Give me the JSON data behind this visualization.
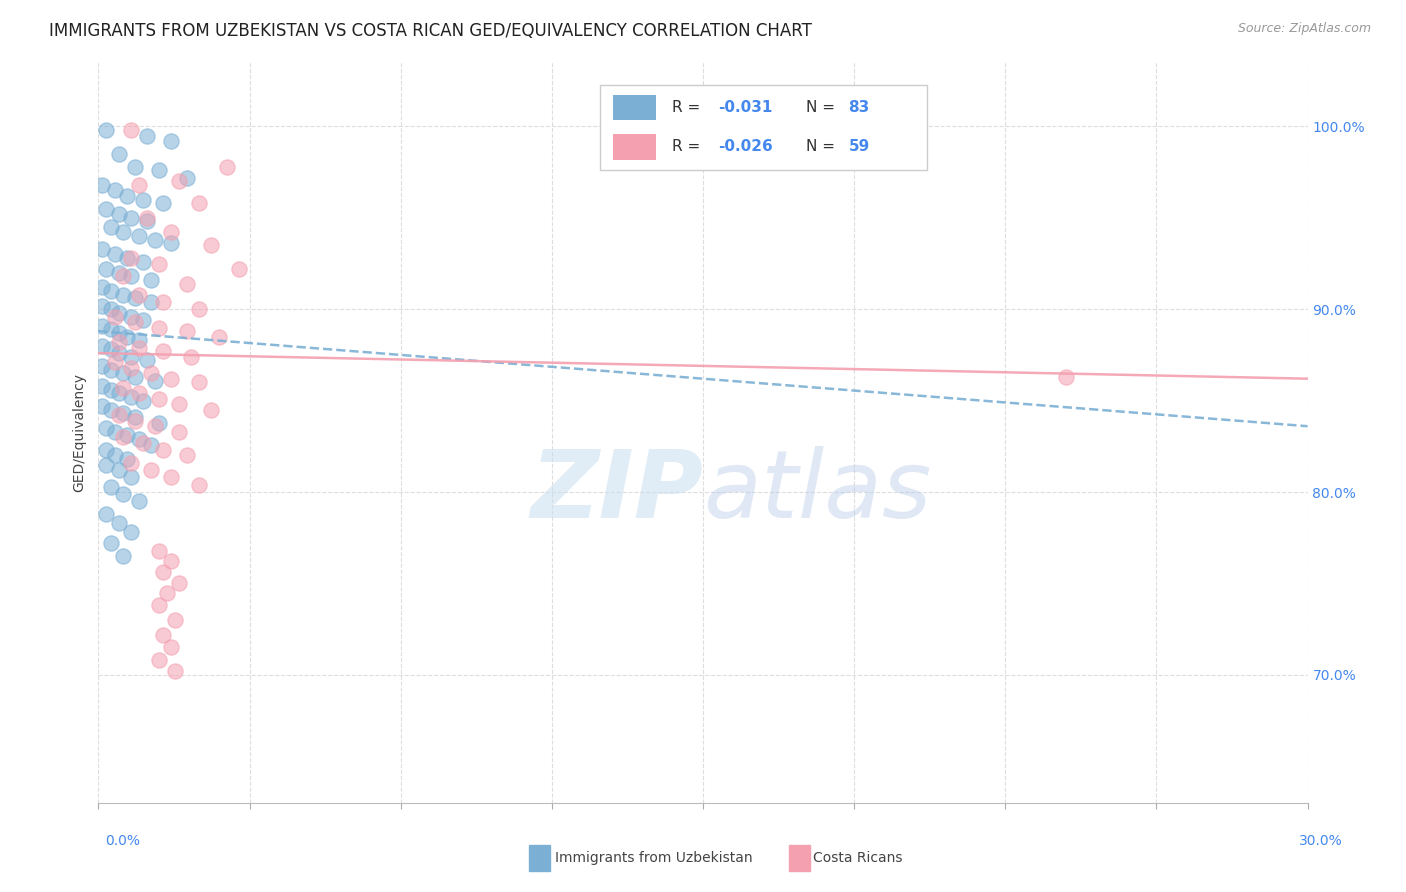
{
  "title": "IMMIGRANTS FROM UZBEKISTAN VS COSTA RICAN GED/EQUIVALENCY CORRELATION CHART",
  "source": "Source: ZipAtlas.com",
  "ylabel": "GED/Equivalency",
  "ytick_labels": [
    "100.0%",
    "90.0%",
    "80.0%",
    "70.0%"
  ],
  "ytick_values": [
    1.0,
    0.9,
    0.8,
    0.7
  ],
  "xlim": [
    0.0,
    0.3
  ],
  "ylim": [
    0.63,
    1.035
  ],
  "legend_label_blue": "Immigrants from Uzbekistan",
  "legend_label_pink": "Costa Ricans",
  "watermark_zip": "ZIP",
  "watermark_atlas": "atlas",
  "blue_color": "#7BAFD4",
  "pink_color": "#F4A0B0",
  "blue_scatter": [
    [
      0.002,
      0.998
    ],
    [
      0.012,
      0.995
    ],
    [
      0.018,
      0.992
    ],
    [
      0.005,
      0.985
    ],
    [
      0.009,
      0.978
    ],
    [
      0.015,
      0.976
    ],
    [
      0.022,
      0.972
    ],
    [
      0.001,
      0.968
    ],
    [
      0.004,
      0.965
    ],
    [
      0.007,
      0.962
    ],
    [
      0.011,
      0.96
    ],
    [
      0.016,
      0.958
    ],
    [
      0.002,
      0.955
    ],
    [
      0.005,
      0.952
    ],
    [
      0.008,
      0.95
    ],
    [
      0.012,
      0.948
    ],
    [
      0.003,
      0.945
    ],
    [
      0.006,
      0.942
    ],
    [
      0.01,
      0.94
    ],
    [
      0.014,
      0.938
    ],
    [
      0.018,
      0.936
    ],
    [
      0.001,
      0.933
    ],
    [
      0.004,
      0.93
    ],
    [
      0.007,
      0.928
    ],
    [
      0.011,
      0.926
    ],
    [
      0.002,
      0.922
    ],
    [
      0.005,
      0.92
    ],
    [
      0.008,
      0.918
    ],
    [
      0.013,
      0.916
    ],
    [
      0.001,
      0.912
    ],
    [
      0.003,
      0.91
    ],
    [
      0.006,
      0.908
    ],
    [
      0.009,
      0.906
    ],
    [
      0.013,
      0.904
    ],
    [
      0.001,
      0.902
    ],
    [
      0.003,
      0.9
    ],
    [
      0.005,
      0.898
    ],
    [
      0.008,
      0.896
    ],
    [
      0.011,
      0.894
    ],
    [
      0.001,
      0.891
    ],
    [
      0.003,
      0.889
    ],
    [
      0.005,
      0.887
    ],
    [
      0.007,
      0.885
    ],
    [
      0.01,
      0.883
    ],
    [
      0.001,
      0.88
    ],
    [
      0.003,
      0.878
    ],
    [
      0.005,
      0.876
    ],
    [
      0.008,
      0.874
    ],
    [
      0.012,
      0.872
    ],
    [
      0.001,
      0.869
    ],
    [
      0.003,
      0.867
    ],
    [
      0.006,
      0.865
    ],
    [
      0.009,
      0.863
    ],
    [
      0.014,
      0.861
    ],
    [
      0.001,
      0.858
    ],
    [
      0.003,
      0.856
    ],
    [
      0.005,
      0.854
    ],
    [
      0.008,
      0.852
    ],
    [
      0.011,
      0.85
    ],
    [
      0.001,
      0.847
    ],
    [
      0.003,
      0.845
    ],
    [
      0.006,
      0.843
    ],
    [
      0.009,
      0.841
    ],
    [
      0.015,
      0.838
    ],
    [
      0.002,
      0.835
    ],
    [
      0.004,
      0.833
    ],
    [
      0.007,
      0.831
    ],
    [
      0.01,
      0.829
    ],
    [
      0.013,
      0.826
    ],
    [
      0.002,
      0.823
    ],
    [
      0.004,
      0.82
    ],
    [
      0.007,
      0.818
    ],
    [
      0.002,
      0.815
    ],
    [
      0.005,
      0.812
    ],
    [
      0.008,
      0.808
    ],
    [
      0.003,
      0.803
    ],
    [
      0.006,
      0.799
    ],
    [
      0.01,
      0.795
    ],
    [
      0.002,
      0.788
    ],
    [
      0.005,
      0.783
    ],
    [
      0.008,
      0.778
    ],
    [
      0.003,
      0.772
    ],
    [
      0.006,
      0.765
    ]
  ],
  "pink_scatter": [
    [
      0.008,
      0.998
    ],
    [
      0.032,
      0.978
    ],
    [
      0.02,
      0.97
    ],
    [
      0.025,
      0.958
    ],
    [
      0.012,
      0.95
    ],
    [
      0.018,
      0.942
    ],
    [
      0.028,
      0.935
    ],
    [
      0.008,
      0.928
    ],
    [
      0.015,
      0.925
    ],
    [
      0.035,
      0.922
    ],
    [
      0.006,
      0.918
    ],
    [
      0.022,
      0.914
    ],
    [
      0.01,
      0.908
    ],
    [
      0.016,
      0.904
    ],
    [
      0.025,
      0.9
    ],
    [
      0.004,
      0.896
    ],
    [
      0.009,
      0.893
    ],
    [
      0.015,
      0.89
    ],
    [
      0.022,
      0.888
    ],
    [
      0.03,
      0.885
    ],
    [
      0.005,
      0.882
    ],
    [
      0.01,
      0.879
    ],
    [
      0.016,
      0.877
    ],
    [
      0.023,
      0.874
    ],
    [
      0.004,
      0.871
    ],
    [
      0.008,
      0.868
    ],
    [
      0.013,
      0.865
    ],
    [
      0.018,
      0.862
    ],
    [
      0.025,
      0.86
    ],
    [
      0.006,
      0.857
    ],
    [
      0.01,
      0.854
    ],
    [
      0.015,
      0.851
    ],
    [
      0.02,
      0.848
    ],
    [
      0.028,
      0.845
    ],
    [
      0.005,
      0.842
    ],
    [
      0.009,
      0.839
    ],
    [
      0.014,
      0.836
    ],
    [
      0.02,
      0.833
    ],
    [
      0.006,
      0.83
    ],
    [
      0.011,
      0.827
    ],
    [
      0.016,
      0.823
    ],
    [
      0.022,
      0.82
    ],
    [
      0.008,
      0.816
    ],
    [
      0.013,
      0.812
    ],
    [
      0.018,
      0.808
    ],
    [
      0.025,
      0.804
    ],
    [
      0.015,
      0.768
    ],
    [
      0.018,
      0.762
    ],
    [
      0.016,
      0.756
    ],
    [
      0.02,
      0.75
    ],
    [
      0.017,
      0.745
    ],
    [
      0.015,
      0.738
    ],
    [
      0.019,
      0.73
    ],
    [
      0.016,
      0.722
    ],
    [
      0.018,
      0.715
    ],
    [
      0.015,
      0.708
    ],
    [
      0.019,
      0.702
    ],
    [
      0.24,
      0.863
    ],
    [
      0.01,
      0.968
    ]
  ],
  "blue_line": {
    "x0": 0.0,
    "x1": 0.3,
    "y0": 0.888,
    "y1": 0.836
  },
  "pink_line": {
    "x0": 0.0,
    "x1": 0.3,
    "y0": 0.876,
    "y1": 0.862
  },
  "title_fontsize": 12,
  "source_fontsize": 9,
  "axis_label_fontsize": 10,
  "tick_fontsize": 10,
  "legend_r_blue": "-0.031",
  "legend_n_blue": "83",
  "legend_r_pink": "-0.026",
  "legend_n_pink": "59",
  "accent_color": "#4488EE",
  "grid_color": "#dddddd"
}
